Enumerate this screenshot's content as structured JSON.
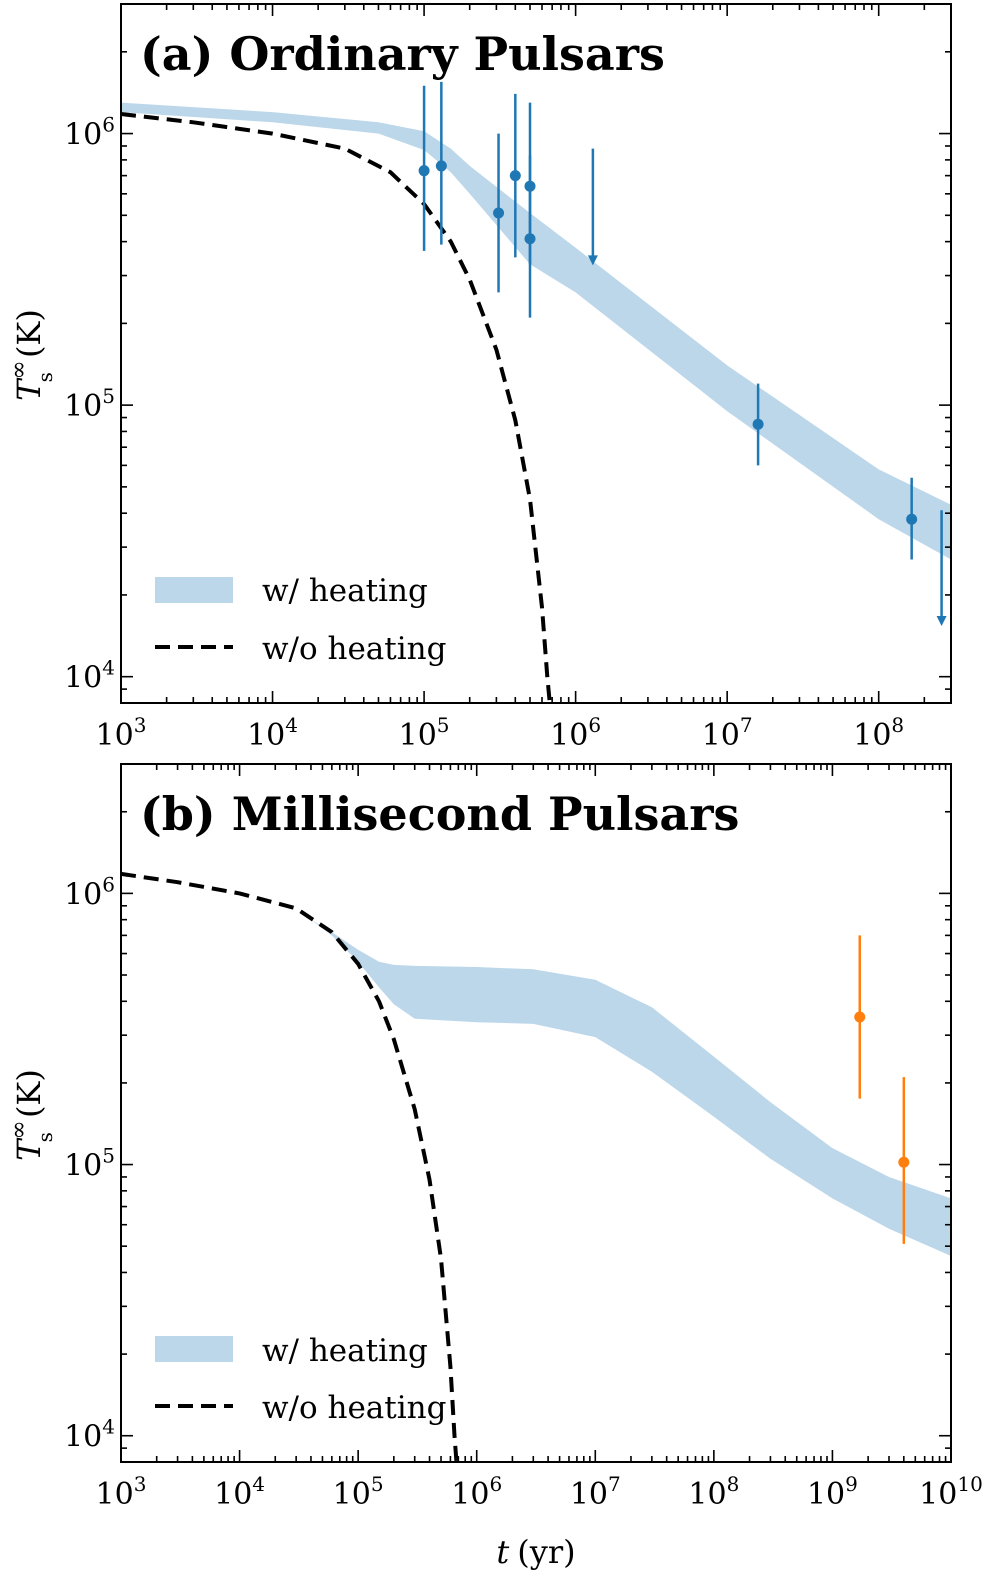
{
  "chart_data": [
    {
      "type": "line",
      "panel": "a",
      "title": "(a) Ordinary Pulsars",
      "xscale": "log",
      "yscale": "log",
      "xlim": [
        1000,
        300000000
      ],
      "ylim": [
        8000,
        3000000
      ],
      "xticks": [
        {
          "base": "10",
          "exp": "3",
          "value": 1000
        },
        {
          "base": "10",
          "exp": "4",
          "value": 10000
        },
        {
          "base": "10",
          "exp": "5",
          "value": 100000
        },
        {
          "base": "10",
          "exp": "6",
          "value": 1000000
        },
        {
          "base": "10",
          "exp": "7",
          "value": 10000000
        },
        {
          "base": "10",
          "exp": "8",
          "value": 100000000
        }
      ],
      "yticks": [
        {
          "base": "10",
          "exp": "4",
          "value": 10000
        },
        {
          "base": "10",
          "exp": "5",
          "value": 100000
        },
        {
          "base": "10",
          "exp": "6",
          "value": 1000000
        }
      ],
      "ylabel": {
        "symbol": "T",
        "sup": "∞",
        "sub": "s",
        "unit": "(K)"
      },
      "xlabel": "",
      "legend": {
        "position": "bottom-left",
        "entries": [
          {
            "label": "w/ heating",
            "style": "band",
            "color": "#bcd7ea"
          },
          {
            "label": "w/o heating",
            "style": "dashed",
            "color": "#000000"
          }
        ]
      },
      "band": {
        "name": "w/ heating",
        "color": "#bcd7ea",
        "x": [
          1000,
          10000,
          50000,
          100000,
          150000,
          200000,
          500000,
          1000000,
          10000000,
          100000000,
          300000000
        ],
        "upper": [
          1300000,
          1200000,
          1100000,
          1020000,
          880000,
          760000,
          510000,
          380000,
          140000,
          58000,
          43000
        ],
        "lower": [
          1200000,
          1100000,
          1000000,
          870000,
          720000,
          600000,
          330000,
          260000,
          95000,
          38000,
          27000
        ]
      },
      "dashed": {
        "name": "w/o heating",
        "color": "#000000",
        "x": [
          1000,
          3000,
          10000,
          30000,
          60000,
          100000,
          150000,
          200000,
          300000,
          400000,
          500000,
          600000,
          650000,
          700000
        ],
        "y": [
          1180000,
          1100000,
          1000000,
          880000,
          720000,
          550000,
          400000,
          290000,
          160000,
          88000,
          45000,
          18000,
          10000,
          6500
        ]
      },
      "points": [
        {
          "x": 100000,
          "y": 730000,
          "ylo": 370000,
          "yhi": 1500000,
          "upper_limit": false
        },
        {
          "x": 130000,
          "y": 760000,
          "ylo": 390000,
          "yhi": 1550000,
          "upper_limit": false
        },
        {
          "x": 310000,
          "y": 510000,
          "ylo": 260000,
          "yhi": 1000000,
          "upper_limit": false
        },
        {
          "x": 400000,
          "y": 700000,
          "ylo": 350000,
          "yhi": 1400000,
          "upper_limit": false
        },
        {
          "x": 500000,
          "y": 640000,
          "ylo": 330000,
          "yhi": 1300000,
          "upper_limit": false
        },
        {
          "x": 500000,
          "y": 410000,
          "ylo": 210000,
          "yhi": 830000,
          "upper_limit": false
        },
        {
          "x": 1300000,
          "y": 880000,
          "ylo": 330000,
          "yhi": 880000,
          "upper_limit": true
        },
        {
          "x": 16000000,
          "y": 85000,
          "ylo": 60000,
          "yhi": 120000,
          "upper_limit": false
        },
        {
          "x": 165000000,
          "y": 38000,
          "ylo": 27000,
          "yhi": 54000,
          "upper_limit": false
        },
        {
          "x": 260000000,
          "y": 41000,
          "ylo": 15500,
          "yhi": 41000,
          "upper_limit": true
        }
      ],
      "point_color": "#1f77b4"
    },
    {
      "type": "line",
      "panel": "b",
      "title": "(b) Millisecond Pulsars",
      "xscale": "log",
      "yscale": "log",
      "xlim": [
        1000,
        10000000000
      ],
      "ylim": [
        8000,
        3000000
      ],
      "xticks": [
        {
          "base": "10",
          "exp": "3",
          "value": 1000
        },
        {
          "base": "10",
          "exp": "4",
          "value": 10000
        },
        {
          "base": "10",
          "exp": "5",
          "value": 100000
        },
        {
          "base": "10",
          "exp": "6",
          "value": 1000000
        },
        {
          "base": "10",
          "exp": "7",
          "value": 10000000
        },
        {
          "base": "10",
          "exp": "8",
          "value": 100000000
        },
        {
          "base": "10",
          "exp": "9",
          "value": 1000000000
        },
        {
          "base": "10",
          "exp": "10",
          "value": 10000000000
        }
      ],
      "yticks": [
        {
          "base": "10",
          "exp": "4",
          "value": 10000
        },
        {
          "base": "10",
          "exp": "5",
          "value": 100000
        },
        {
          "base": "10",
          "exp": "6",
          "value": 1000000
        }
      ],
      "ylabel": {
        "symbol": "T",
        "sup": "∞",
        "sub": "s",
        "unit": "(K)"
      },
      "xlabel": {
        "symbol": "t",
        "unit": "(yr)"
      },
      "legend": {
        "position": "bottom-left",
        "entries": [
          {
            "label": "w/ heating",
            "style": "band",
            "color": "#bcd7ea"
          },
          {
            "label": "w/o heating",
            "style": "dashed",
            "color": "#000000"
          }
        ]
      },
      "band": {
        "name": "w/ heating",
        "color": "#bcd7ea",
        "x": [
          40000,
          60000,
          100000,
          150000,
          200000,
          300000,
          1000000,
          3000000,
          10000000,
          30000000,
          100000000,
          300000000,
          1000000000,
          3000000000,
          10000000000
        ],
        "upper": [
          800000,
          720000,
          620000,
          560000,
          545000,
          540000,
          535000,
          525000,
          480000,
          380000,
          250000,
          170000,
          115000,
          90000,
          75000
        ],
        "lower": [
          800000,
          700000,
          560000,
          450000,
          390000,
          345000,
          335000,
          330000,
          295000,
          220000,
          150000,
          105000,
          75000,
          58000,
          46000
        ]
      },
      "dashed": {
        "name": "w/o heating",
        "color": "#000000",
        "x": [
          1000,
          3000,
          10000,
          30000,
          60000,
          100000,
          150000,
          200000,
          300000,
          400000,
          500000,
          600000,
          650000,
          700000
        ],
        "y": [
          1180000,
          1100000,
          1000000,
          880000,
          720000,
          550000,
          400000,
          290000,
          160000,
          88000,
          45000,
          18000,
          10000,
          6500
        ]
      },
      "points": [
        {
          "x": 1700000000,
          "y": 350000,
          "ylo": 175000,
          "yhi": 700000,
          "upper_limit": false
        },
        {
          "x": 4000000000,
          "y": 102000,
          "ylo": 51000,
          "yhi": 210000,
          "upper_limit": false
        }
      ],
      "point_color": "#ff7f0e"
    }
  ]
}
